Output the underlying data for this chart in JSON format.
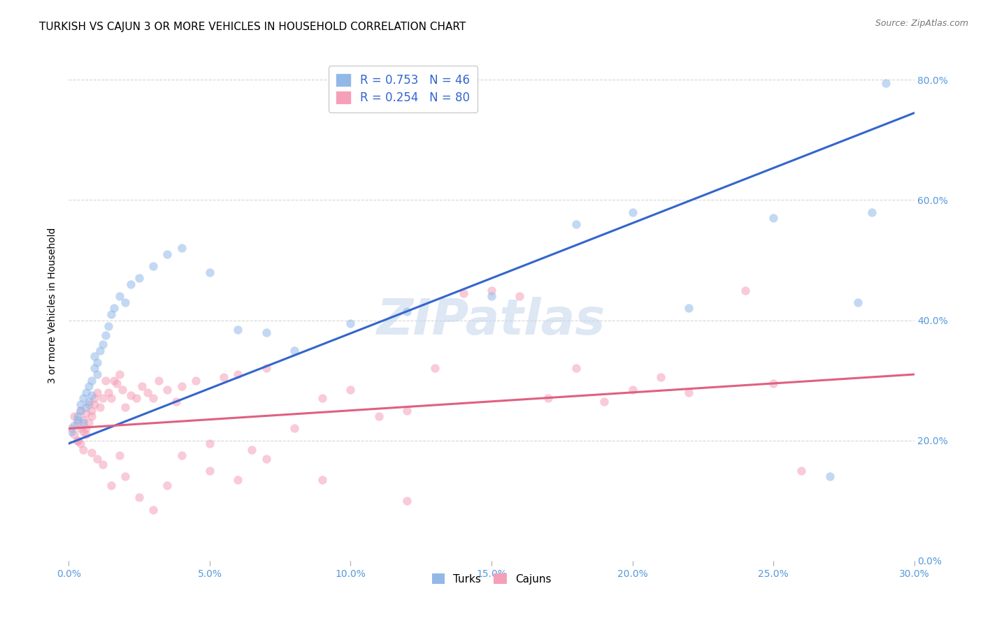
{
  "title": "TURKISH VS CAJUN 3 OR MORE VEHICLES IN HOUSEHOLD CORRELATION CHART",
  "source": "Source: ZipAtlas.com",
  "xmin": 0.0,
  "xmax": 0.3,
  "ymin": 0.0,
  "ymax": 0.85,
  "xlabel_color": "#5599dd",
  "ylabel_color": "#5599dd",
  "turks_color": "#92b8e8",
  "cajuns_color": "#f5a0b8",
  "turks_line_color": "#3366cc",
  "cajuns_line_color": "#e06080",
  "watermark_color": "#c8d8ee",
  "grid_color": "#cccccc",
  "background_color": "#ffffff",
  "title_fontsize": 11,
  "axis_tick_fontsize": 10,
  "marker_size": 80,
  "marker_alpha": 0.55,
  "turks_x": [
    0.001,
    0.002,
    0.003,
    0.003,
    0.004,
    0.004,
    0.005,
    0.005,
    0.006,
    0.006,
    0.007,
    0.007,
    0.008,
    0.008,
    0.009,
    0.009,
    0.01,
    0.01,
    0.011,
    0.012,
    0.013,
    0.014,
    0.015,
    0.016,
    0.018,
    0.02,
    0.022,
    0.025,
    0.03,
    0.035,
    0.04,
    0.05,
    0.06,
    0.07,
    0.08,
    0.1,
    0.12,
    0.15,
    0.18,
    0.2,
    0.22,
    0.25,
    0.27,
    0.28,
    0.285,
    0.29
  ],
  "turks_y": [
    0.215,
    0.225,
    0.235,
    0.24,
    0.25,
    0.26,
    0.23,
    0.27,
    0.255,
    0.28,
    0.265,
    0.29,
    0.3,
    0.275,
    0.32,
    0.34,
    0.31,
    0.33,
    0.35,
    0.36,
    0.375,
    0.39,
    0.41,
    0.42,
    0.44,
    0.43,
    0.46,
    0.47,
    0.49,
    0.51,
    0.52,
    0.48,
    0.385,
    0.38,
    0.35,
    0.395,
    0.415,
    0.44,
    0.56,
    0.58,
    0.42,
    0.57,
    0.14,
    0.43,
    0.58,
    0.795
  ],
  "cajuns_x": [
    0.001,
    0.002,
    0.002,
    0.003,
    0.003,
    0.004,
    0.004,
    0.005,
    0.005,
    0.006,
    0.006,
    0.007,
    0.007,
    0.008,
    0.008,
    0.009,
    0.009,
    0.01,
    0.011,
    0.012,
    0.013,
    0.014,
    0.015,
    0.016,
    0.017,
    0.018,
    0.019,
    0.02,
    0.022,
    0.024,
    0.026,
    0.028,
    0.03,
    0.032,
    0.035,
    0.038,
    0.04,
    0.045,
    0.05,
    0.055,
    0.06,
    0.065,
    0.07,
    0.08,
    0.09,
    0.1,
    0.11,
    0.12,
    0.13,
    0.14,
    0.15,
    0.16,
    0.17,
    0.18,
    0.19,
    0.2,
    0.21,
    0.22,
    0.24,
    0.25,
    0.003,
    0.004,
    0.005,
    0.006,
    0.008,
    0.01,
    0.012,
    0.015,
    0.018,
    0.02,
    0.025,
    0.03,
    0.035,
    0.04,
    0.05,
    0.06,
    0.07,
    0.09,
    0.12,
    0.26
  ],
  "cajuns_y": [
    0.22,
    0.21,
    0.24,
    0.2,
    0.23,
    0.22,
    0.25,
    0.215,
    0.235,
    0.22,
    0.245,
    0.23,
    0.26,
    0.25,
    0.24,
    0.27,
    0.26,
    0.28,
    0.255,
    0.27,
    0.3,
    0.28,
    0.27,
    0.3,
    0.295,
    0.31,
    0.285,
    0.255,
    0.275,
    0.27,
    0.29,
    0.28,
    0.27,
    0.3,
    0.285,
    0.265,
    0.29,
    0.3,
    0.195,
    0.305,
    0.31,
    0.185,
    0.32,
    0.22,
    0.27,
    0.285,
    0.24,
    0.25,
    0.32,
    0.445,
    0.45,
    0.44,
    0.27,
    0.32,
    0.265,
    0.285,
    0.305,
    0.28,
    0.45,
    0.295,
    0.2,
    0.195,
    0.185,
    0.21,
    0.18,
    0.17,
    0.16,
    0.125,
    0.175,
    0.14,
    0.105,
    0.085,
    0.125,
    0.175,
    0.15,
    0.135,
    0.17,
    0.135,
    0.1,
    0.15
  ],
  "turks_line_x": [
    0.0,
    0.3
  ],
  "turks_line_y": [
    0.195,
    0.745
  ],
  "cajuns_line_x": [
    0.0,
    0.3
  ],
  "cajuns_line_y": [
    0.22,
    0.31
  ]
}
